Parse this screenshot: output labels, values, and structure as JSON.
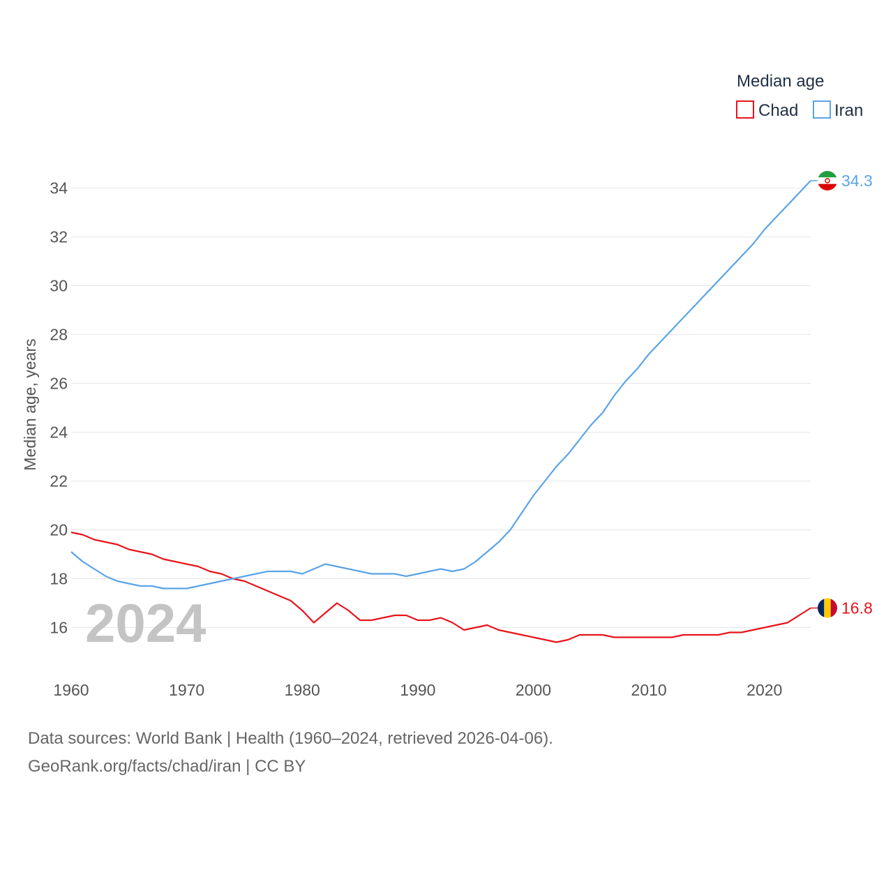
{
  "chart_data": {
    "type": "line",
    "legend_title": "Median age",
    "ylabel": "Median age, years",
    "xlim": [
      1960,
      2024
    ],
    "ylim": [
      14.3,
      35.3
    ],
    "yticks": [
      16,
      18,
      20,
      22,
      24,
      26,
      28,
      30,
      32,
      34
    ],
    "xticks": [
      1960,
      1970,
      1980,
      1990,
      2000,
      2010,
      2020
    ],
    "year_label": "2024",
    "legend_position": "top-right",
    "series": [
      {
        "name": "Chad",
        "color": "#e8141b",
        "end_label": "16.8",
        "flag_icon": "chad-flag-icon",
        "x": [
          1960,
          1961,
          1962,
          1963,
          1964,
          1965,
          1966,
          1967,
          1968,
          1969,
          1970,
          1971,
          1972,
          1973,
          1974,
          1975,
          1976,
          1977,
          1978,
          1979,
          1980,
          1981,
          1982,
          1983,
          1984,
          1985,
          1986,
          1987,
          1988,
          1989,
          1990,
          1991,
          1992,
          1993,
          1994,
          1995,
          1996,
          1997,
          1998,
          1999,
          2000,
          2001,
          2002,
          2003,
          2004,
          2005,
          2006,
          2007,
          2008,
          2009,
          2010,
          2011,
          2012,
          2013,
          2014,
          2015,
          2016,
          2017,
          2018,
          2019,
          2020,
          2021,
          2022,
          2023,
          2024
        ],
        "values": [
          19.9,
          19.8,
          19.6,
          19.5,
          19.4,
          19.2,
          19.1,
          19.0,
          18.8,
          18.7,
          18.6,
          18.5,
          18.3,
          18.2,
          18.0,
          17.9,
          17.7,
          17.5,
          17.3,
          17.1,
          16.7,
          16.2,
          16.6,
          17.0,
          16.7,
          16.3,
          16.3,
          16.4,
          16.5,
          16.5,
          16.3,
          16.3,
          16.4,
          16.2,
          15.9,
          16.0,
          16.1,
          15.9,
          15.8,
          15.7,
          15.6,
          15.5,
          15.4,
          15.5,
          15.7,
          15.7,
          15.7,
          15.6,
          15.6,
          15.6,
          15.6,
          15.6,
          15.6,
          15.7,
          15.7,
          15.7,
          15.7,
          15.8,
          15.8,
          15.9,
          16.0,
          16.1,
          16.2,
          16.5,
          16.8
        ]
      },
      {
        "name": "Iran",
        "color": "#5aa4e6",
        "end_label": "34.3",
        "flag_icon": "iran-flag-icon",
        "x": [
          1960,
          1961,
          1962,
          1963,
          1964,
          1965,
          1966,
          1967,
          1968,
          1969,
          1970,
          1971,
          1972,
          1973,
          1974,
          1975,
          1976,
          1977,
          1978,
          1979,
          1980,
          1981,
          1982,
          1983,
          1984,
          1985,
          1986,
          1987,
          1988,
          1989,
          1990,
          1991,
          1992,
          1993,
          1994,
          1995,
          1996,
          1997,
          1998,
          1999,
          2000,
          2001,
          2002,
          2003,
          2004,
          2005,
          2006,
          2007,
          2008,
          2009,
          2010,
          2011,
          2012,
          2013,
          2014,
          2015,
          2016,
          2017,
          2018,
          2019,
          2020,
          2021,
          2022,
          2023,
          2024
        ],
        "values": [
          19.1,
          18.7,
          18.4,
          18.1,
          17.9,
          17.8,
          17.7,
          17.7,
          17.6,
          17.6,
          17.6,
          17.7,
          17.8,
          17.9,
          18.0,
          18.1,
          18.2,
          18.3,
          18.3,
          18.3,
          18.2,
          18.4,
          18.6,
          18.5,
          18.4,
          18.3,
          18.2,
          18.2,
          18.2,
          18.1,
          18.2,
          18.3,
          18.4,
          18.3,
          18.4,
          18.7,
          19.1,
          19.5,
          20.0,
          20.7,
          21.4,
          22.0,
          22.6,
          23.1,
          23.7,
          24.3,
          24.8,
          25.5,
          26.1,
          26.6,
          27.2,
          27.7,
          28.2,
          28.7,
          29.2,
          29.7,
          30.2,
          30.7,
          31.2,
          31.7,
          32.3,
          32.8,
          33.3,
          33.8,
          34.3
        ]
      }
    ]
  },
  "footer": {
    "source_line": "Data sources: World Bank | Health (1960–2024, retrieved 2026-04-06).",
    "credit_line": "GeoRank.org/facts/chad/iran | CC BY"
  }
}
